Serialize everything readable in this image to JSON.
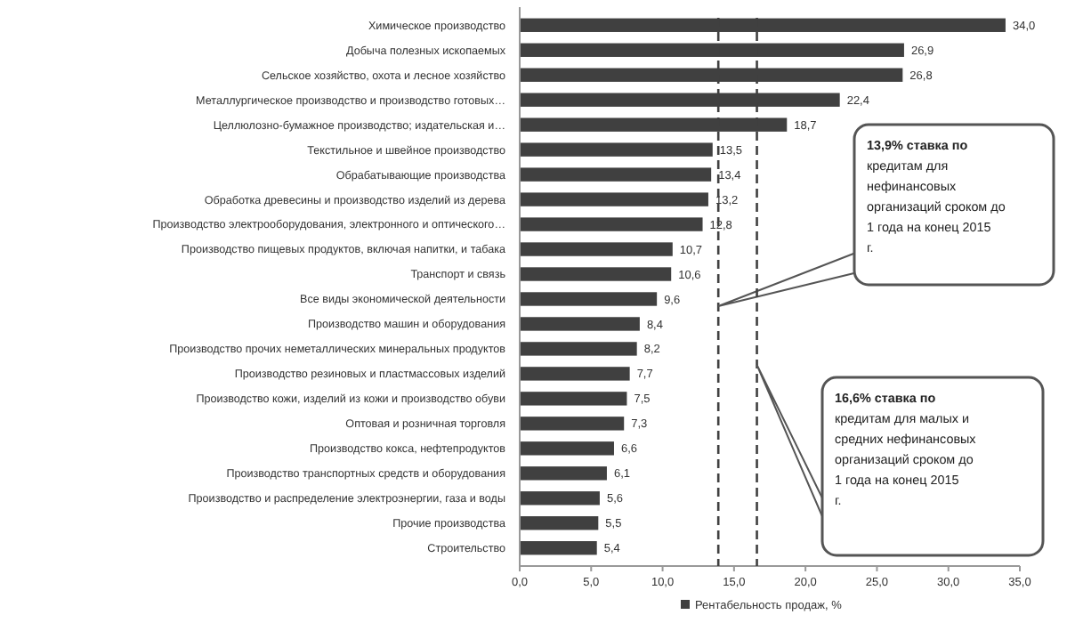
{
  "chart_data": {
    "type": "bar",
    "orientation": "horizontal",
    "categories": [
      "Химическое производство",
      "Добыча полезных ископаемых",
      "Сельское хозяйство, охота и лесное хозяйство",
      "Металлургическое производство и производство готовых…",
      "Целлюлозно-бумажное производство; издательская и…",
      "Текстильное и швейное производство",
      "Обрабатывающие производства",
      "Обработка древесины и производство изделий из дерева",
      "Производство электрооборудования, электронного и оптического…",
      "Производство пищевых продуктов, включая напитки, и табака",
      "Транспорт и связь",
      "Все виды экономической деятельности",
      "Производство машин и оборудования",
      "Производство прочих неметаллических минеральных продуктов",
      "Производство резиновых и пластмассовых изделий",
      "Производство кожи, изделий из кожи и производство обуви",
      "Оптовая и розничная торговля",
      "Производство кокса, нефтепродуктов",
      "Производство транспортных средств и оборудования",
      "Производство и распределение электроэнергии, газа и воды",
      "Прочие производства",
      "Строительство"
    ],
    "series": [
      {
        "name": "Рентабельность продаж, %",
        "color": "#404040",
        "values": [
          34.0,
          26.9,
          26.8,
          22.4,
          18.7,
          13.5,
          13.4,
          13.2,
          12.8,
          10.7,
          10.6,
          9.6,
          8.4,
          8.2,
          7.7,
          7.5,
          7.3,
          6.6,
          6.1,
          5.6,
          5.5,
          5.4
        ],
        "value_labels": [
          "34,0",
          "26,9",
          "26,8",
          "22,4",
          "18,7",
          "13,5",
          "13,4",
          "13,2",
          "12,8",
          "10,7",
          "10,6",
          "9,6",
          "8,4",
          "8,2",
          "7,7",
          "7,5",
          "7,3",
          "6,6",
          "6,1",
          "5,6",
          "5,5",
          "5,4"
        ]
      }
    ],
    "xlim": [
      0,
      35
    ],
    "xticks": [
      {
        "value": 0,
        "label": "0,0"
      },
      {
        "value": 5,
        "label": "5,0"
      },
      {
        "value": 10,
        "label": "10,0"
      },
      {
        "value": 15,
        "label": "15,0"
      },
      {
        "value": 20,
        "label": "20,0"
      },
      {
        "value": 25,
        "label": "25,0"
      },
      {
        "value": 30,
        "label": "30,0"
      },
      {
        "value": 35,
        "label": "35,0"
      }
    ],
    "ref_lines": [
      {
        "axis": "x",
        "value": 13.9,
        "label": "13,9% ставка по кредитам для нефинансовых организаций сроком до 1 года на конец 2015 г.",
        "color": "#404040",
        "line_style": "dashed"
      },
      {
        "axis": "x",
        "value": 16.6,
        "label": "16,6% ставка по кредитам для малых и средних нефинансовых организаций сроком до 1 года на конец 2015 г.",
        "color": "#404040",
        "line_style": "dashed"
      }
    ],
    "grid": false,
    "legend": "bottom"
  }
}
